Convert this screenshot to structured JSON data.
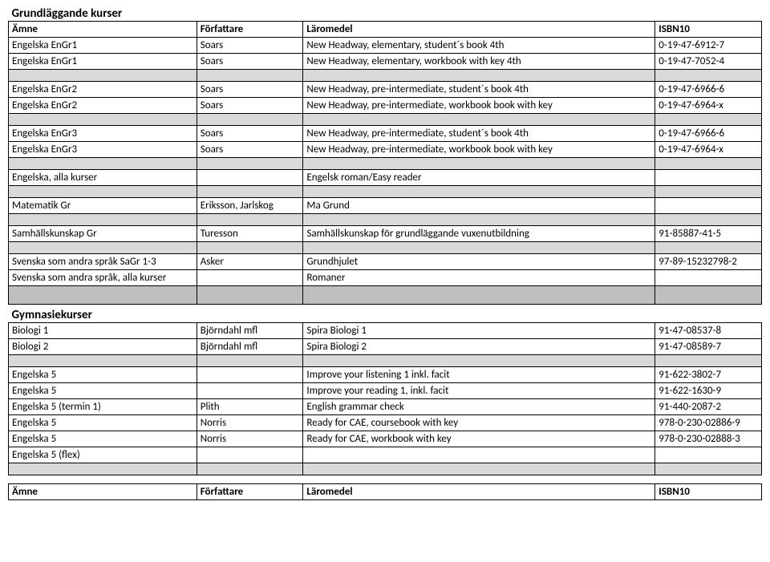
{
  "sections": {
    "grund": "Grundläggande kurser",
    "gym": "Gymnasiekurser"
  },
  "headers": {
    "amne": "Ämne",
    "forfattare": "Författare",
    "laromedel": "Läromedel",
    "isbn": "ISBN10"
  },
  "rows": {
    "r1": {
      "amne": "Engelska  EnGr1",
      "forf": "Soars",
      "laro": "New Headway, elementary, student´s book 4th",
      "isbn": "0-19-47-6912-7"
    },
    "r2": {
      "amne": "Engelska  EnGr1",
      "forf": "Soars",
      "laro": "New Headway, elementary, workbook with key 4th",
      "isbn": "0-19-47-7052-4"
    },
    "r3": {
      "amne": "Engelska EnGr2",
      "forf": "Soars",
      "laro": "New Headway, pre-intermediate, student´s book 4th",
      "isbn": "0-19-47-6966-6"
    },
    "r4": {
      "amne": "Engelska EnGr2",
      "forf": "Soars",
      "laro": "New Headway, pre-intermediate, workbook book with key",
      "isbn": "0-19-47-6964-x"
    },
    "r5": {
      "amne": "Engelska EnGr3",
      "forf": "Soars",
      "laro": "New Headway, pre-intermediate, student´s book 4th",
      "isbn": "0-19-47-6966-6"
    },
    "r6": {
      "amne": "Engelska EnGr3",
      "forf": "Soars",
      "laro": "New Headway, pre-intermediate, workbook book with key",
      "isbn": "0-19-47-6964-x"
    },
    "r7": {
      "amne": "Engelska, alla kurser",
      "forf": "",
      "laro": "Engelsk roman/Easy reader",
      "isbn": ""
    },
    "r8": {
      "amne": "Matematik Gr",
      "forf": "Eriksson, Jarlskog",
      "laro": "Ma Grund",
      "isbn": ""
    },
    "r9": {
      "amne": "Samhällskunskap Gr",
      "forf": "Turesson",
      "laro": "Samhällskunskap för grundläggande vuxenutbildning",
      "isbn": "91-85887-41-5"
    },
    "r10": {
      "amne": "Svenska som andra språk SaGr 1-3",
      "forf": "Asker",
      "laro": "Grundhjulet",
      "isbn": "97-89-15232798-2"
    },
    "r11": {
      "amne": "Svenska som andra språk, alla kurser",
      "forf": "",
      "laro": "Romaner",
      "isbn": ""
    },
    "r12": {
      "amne": "Biologi 1",
      "forf": "Björndahl mfl",
      "laro": "Spira Biologi 1",
      "isbn": "91-47-08537-8"
    },
    "r13": {
      "amne": "Biologi 2",
      "forf": "Björndahl mfl",
      "laro": "Spira Biologi 2",
      "isbn": "91-47-08589-7"
    },
    "r14": {
      "amne": "Engelska 5",
      "forf": "",
      "laro": "Improve your listening 1 inkl. facit",
      "isbn": "91-622-3802-7"
    },
    "r15": {
      "amne": "Engelska 5",
      "forf": "",
      "laro": "Improve your reading 1, inkl. facit",
      "isbn": "91-622-1630-9"
    },
    "r16": {
      "amne": "Engelska 5  (termin 1)",
      "forf": "Plith",
      "laro": "English grammar check",
      "isbn": "91-440-2087-2"
    },
    "r17": {
      "amne": "Engelska 5",
      "forf": "Norris",
      "laro": "Ready for CAE, coursebook with key",
      "isbn": "978-0-230-02886-9"
    },
    "r18": {
      "amne": "Engelska 5",
      "forf": "Norris",
      "laro": "Ready for CAE, workbook with key",
      "isbn": "978-0-230-02888-3"
    },
    "r19": {
      "amne": "Engelska 5 (flex)",
      "forf": "",
      "laro": "",
      "isbn": ""
    }
  },
  "style": {
    "sep_bg": "#d9d9d9",
    "big_sep_bg": "#bfbfbf",
    "border": "#000000",
    "font_size_body": 13,
    "font_size_section": 15
  }
}
